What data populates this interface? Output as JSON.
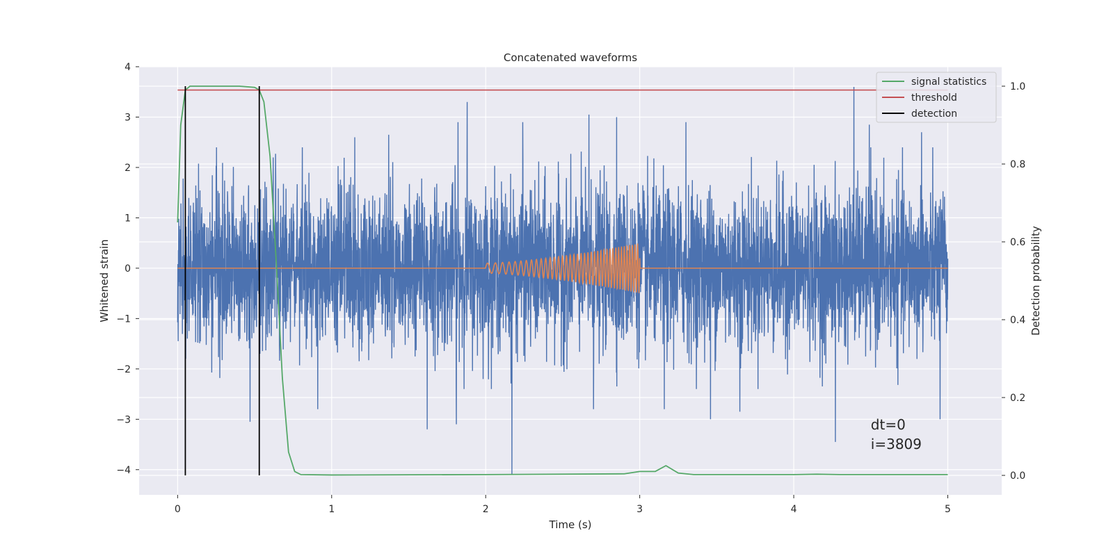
{
  "chart_data": {
    "type": "line",
    "title": "Concatenated waveforms",
    "xlabel": "Time (s)",
    "ylabel_left": "Whitened strain",
    "ylabel_right": "Detection probability",
    "xlim": [
      -0.25,
      5.35
    ],
    "ylim_left": [
      -4.5,
      4
    ],
    "ylim_right": [
      -0.05,
      1.05
    ],
    "x_ticks": [
      0,
      1,
      2,
      3,
      4,
      5
    ],
    "x_tick_labels": [
      "0",
      "1",
      "2",
      "3",
      "4",
      "5"
    ],
    "y_left_ticks": [
      -4,
      -3,
      -2,
      -1,
      0,
      1,
      2,
      3,
      4
    ],
    "y_left_tick_labels": [
      "−4",
      "−3",
      "−2",
      "−1",
      "0",
      "1",
      "2",
      "3",
      "4"
    ],
    "y_right_ticks": [
      0,
      0.2,
      0.4,
      0.6,
      0.8,
      1.0
    ],
    "y_right_tick_labels": [
      "0.0",
      "0.2",
      "0.4",
      "0.6",
      "0.8",
      "1.0"
    ],
    "grid": true,
    "legend_position": "top-right",
    "colors": {
      "noise": "#4c72b0",
      "template": "#dd8452",
      "signal_statistics": "#55a868",
      "threshold": "#c44e52",
      "detection": "#000000",
      "plot_background": "#eaeaf2",
      "grid": "#ffffff"
    },
    "series": [
      {
        "name": "signal statistics",
        "axis": "right",
        "x": [
          0,
          0.02,
          0.05,
          0.08,
          0.1,
          0.2,
          0.3,
          0.4,
          0.5,
          0.53,
          0.56,
          0.6,
          0.64,
          0.68,
          0.72,
          0.76,
          0.8,
          1.0,
          2.0,
          2.9,
          3.0,
          3.1,
          3.17,
          3.25,
          3.35,
          4.0,
          4.15,
          4.3,
          5.0
        ],
        "y": [
          0.65,
          0.9,
          0.99,
          1.0,
          1.0,
          1.0,
          1.0,
          1.0,
          0.997,
          0.99,
          0.96,
          0.82,
          0.55,
          0.25,
          0.06,
          0.01,
          0.002,
          0.001,
          0.002,
          0.004,
          0.01,
          0.01,
          0.025,
          0.006,
          0.002,
          0.002,
          0.003,
          0.002,
          0.002
        ]
      },
      {
        "name": "threshold",
        "axis": "right",
        "x": [
          0,
          5
        ],
        "y": [
          0.99,
          0.99
        ]
      },
      {
        "name": "detection",
        "axis": "right",
        "x": [
          0.05,
          0.53
        ],
        "y": [
          0,
          1
        ]
      }
    ],
    "noise": {
      "axis": "left",
      "x_range": [
        0,
        5
      ],
      "typical_range": [
        -2,
        2
      ],
      "peaks": [
        {
          "x": 0.47,
          "y": 2.4
        },
        {
          "x": 0.62,
          "y": 2.2
        },
        {
          "x": 0.81,
          "y": 2.4
        },
        {
          "x": 1.15,
          "y": 2.6
        },
        {
          "x": 1.37,
          "y": 2.65
        },
        {
          "x": 1.82,
          "y": 2.9
        },
        {
          "x": 1.88,
          "y": 3.3
        },
        {
          "x": 2.24,
          "y": 2.9
        },
        {
          "x": 2.67,
          "y": 3.05
        },
        {
          "x": 2.85,
          "y": 3.0
        },
        {
          "x": 3.3,
          "y": 2.9
        },
        {
          "x": 3.65,
          "y": 2.9
        },
        {
          "x": 4.39,
          "y": 3.6
        },
        {
          "x": 4.49,
          "y": 2.85
        },
        {
          "x": 4.83,
          "y": 2.7
        },
        {
          "x": 0.47,
          "y": -3.05
        },
        {
          "x": 0.91,
          "y": -2.8
        },
        {
          "x": 1.62,
          "y": -3.2
        },
        {
          "x": 1.81,
          "y": -3.1
        },
        {
          "x": 2.17,
          "y": -4.1
        },
        {
          "x": 2.7,
          "y": -2.8
        },
        {
          "x": 3.16,
          "y": -2.8
        },
        {
          "x": 3.46,
          "y": -3.0
        },
        {
          "x": 3.65,
          "y": -2.85
        },
        {
          "x": 4.27,
          "y": -3.45
        },
        {
          "x": 4.95,
          "y": -3.0
        }
      ]
    },
    "template_chirp": {
      "axis": "left",
      "x_range": [
        0,
        5
      ],
      "start": 2.0,
      "end": 3.0,
      "start_amplitude": 0.1,
      "end_amplitude": 0.5,
      "start_freq_hz": 18,
      "end_freq_hz": 60
    },
    "annotation": {
      "lines": [
        "dt=0",
        "i=3809"
      ],
      "x": 4.5,
      "y": -3.2
    }
  }
}
